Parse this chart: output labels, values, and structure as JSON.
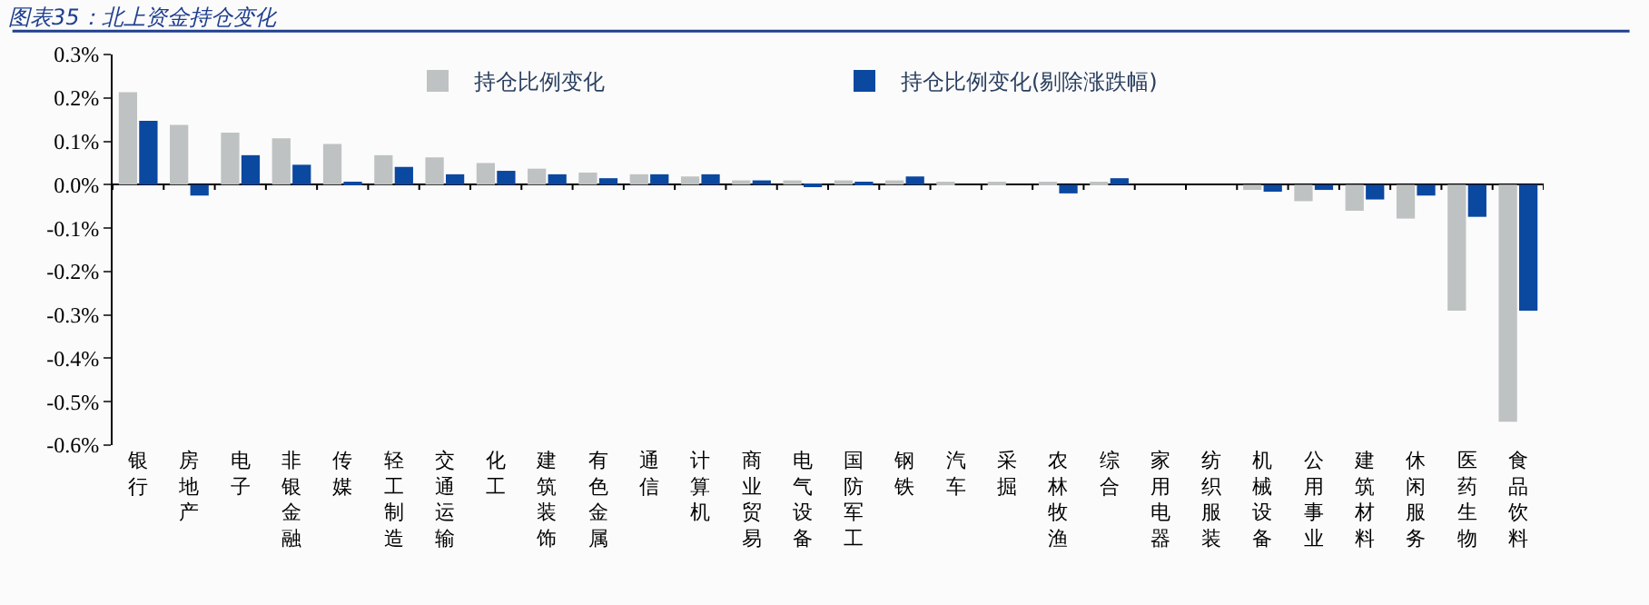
{
  "chart_data": {
    "type": "bar",
    "title": "图表35：北上资金持仓变化",
    "categories": [
      "银行",
      "房地产",
      "电子",
      "非银金融",
      "传媒",
      "轻工制造",
      "交通运输",
      "化工",
      "建筑装饰",
      "有色金属",
      "通信",
      "计算机",
      "商业贸易",
      "电气设备",
      "国防军工",
      "钢铁",
      "汽车",
      "采掘",
      "农林牧渔",
      "综合",
      "家用电器",
      "纺织服装",
      "机械设备",
      "公用事业",
      "建筑材料",
      "休闲服务",
      "医药生物",
      "食品饮料"
    ],
    "series": [
      {
        "name": "持仓比例变化",
        "color": "#bfc2c2",
        "values": [
          0.213,
          0.138,
          0.12,
          0.107,
          0.094,
          0.068,
          0.063,
          0.05,
          0.037,
          0.028,
          0.024,
          0.019,
          0.01,
          0.01,
          0.01,
          0.01,
          0.006,
          0.005,
          0.005,
          0.005,
          0,
          0,
          -0.012,
          -0.038,
          -0.06,
          -0.078,
          -0.29,
          -0.546
        ]
      },
      {
        "name": "持仓比例变化(剔除涨跌幅)",
        "color": "#0b48a0",
        "values": [
          0.147,
          -0.025,
          0.068,
          0.046,
          0.006,
          0.041,
          0.024,
          0.032,
          0.024,
          0.015,
          0.024,
          0.024,
          0.01,
          -0.004,
          0.006,
          0.019,
          0,
          0,
          -0.02,
          0.015,
          0,
          0,
          -0.016,
          -0.012,
          -0.034,
          -0.025,
          -0.074,
          -0.29
        ]
      }
    ],
    "ylim": [
      -0.6,
      0.3
    ],
    "yticks": [
      {
        "value": 0.3,
        "label": "0.3%"
      },
      {
        "value": 0.2,
        "label": "0.2%"
      },
      {
        "value": 0.1,
        "label": "0.1%"
      },
      {
        "value": 0.0,
        "label": "0.0%"
      },
      {
        "value": -0.1,
        "label": "-0.1%"
      },
      {
        "value": -0.2,
        "label": "-0.2%"
      },
      {
        "value": -0.3,
        "label": "-0.3%"
      },
      {
        "value": -0.4,
        "label": "-0.4%"
      },
      {
        "value": -0.5,
        "label": "-0.5%"
      },
      {
        "value": -0.6,
        "label": "-0.6%"
      }
    ],
    "legend": "top"
  }
}
